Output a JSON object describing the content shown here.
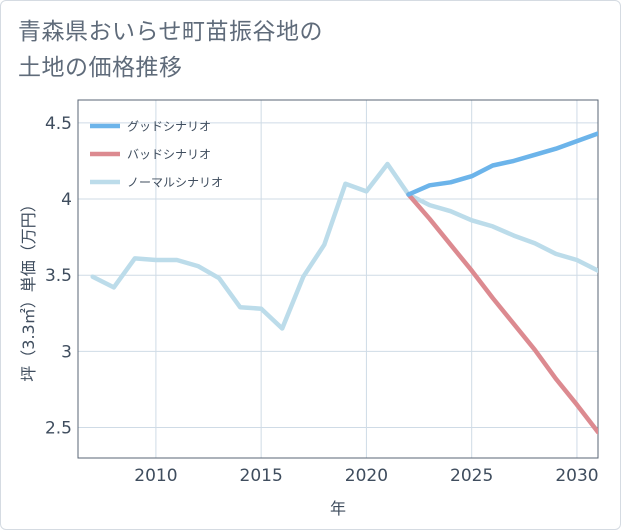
{
  "chart_data": {
    "type": "line",
    "title_line1": "青森県おいらせ町苗振谷地の",
    "title_line2": "土地の価格推移",
    "xlabel": "年",
    "ylabel": "坪（3.3㎡）単価（万円）",
    "xlim": [
      2006.3,
      2031
    ],
    "ylim": [
      2.3,
      4.65
    ],
    "x_ticks": [
      2010,
      2015,
      2020,
      2025,
      2030
    ],
    "y_ticks": [
      2.5,
      3,
      3.5,
      4,
      4.5
    ],
    "y_tick_labels": [
      "2.5",
      "3",
      "3.5",
      "4",
      "4.5"
    ],
    "grid": true,
    "legend_position": "top-left",
    "series": [
      {
        "name": "グッドシナリオ",
        "color": "#6cb4ea",
        "x": [
          2022,
          2023,
          2024,
          2025,
          2026,
          2027,
          2028,
          2029,
          2030,
          2031
        ],
        "y": [
          4.03,
          4.09,
          4.11,
          4.15,
          4.22,
          4.25,
          4.29,
          4.33,
          4.38,
          4.43
        ]
      },
      {
        "name": "バッドシナリオ",
        "color": "#dc8a90",
        "x": [
          2022,
          2023,
          2024,
          2025,
          2026,
          2027,
          2028,
          2029,
          2030,
          2031
        ],
        "y": [
          4.03,
          3.87,
          3.7,
          3.53,
          3.35,
          3.18,
          3.01,
          2.82,
          2.65,
          2.47
        ]
      },
      {
        "name": "ノーマルシナリオ",
        "color": "#bcdcea",
        "x": [
          2007,
          2008,
          2009,
          2010,
          2011,
          2012,
          2013,
          2014,
          2015,
          2016,
          2017,
          2018,
          2019,
          2020,
          2021,
          2022,
          2023,
          2024,
          2025,
          2026,
          2027,
          2028,
          2029,
          2030,
          2031
        ],
        "y": [
          3.49,
          3.42,
          3.61,
          3.6,
          3.6,
          3.56,
          3.48,
          3.29,
          3.28,
          3.15,
          3.49,
          3.7,
          4.1,
          4.05,
          4.23,
          4.03,
          3.96,
          3.92,
          3.86,
          3.82,
          3.76,
          3.71,
          3.64,
          3.6,
          3.53
        ]
      }
    ]
  }
}
